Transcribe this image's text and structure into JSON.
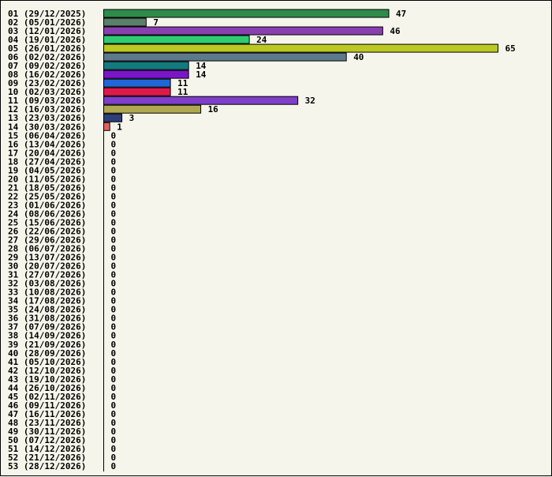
{
  "chart_data": {
    "type": "bar",
    "orientation": "horizontal",
    "title": "",
    "xlabel": "",
    "ylabel": "",
    "xlim": [
      0,
      65
    ],
    "grid": false,
    "legend": "none",
    "categories": [
      "01 (29/12/2025)",
      "02 (05/01/2026)",
      "03 (12/01/2026)",
      "04 (19/01/2026)",
      "05 (26/01/2026)",
      "06 (02/02/2026)",
      "07 (09/02/2026)",
      "08 (16/02/2026)",
      "09 (23/02/2026)",
      "10 (02/03/2026)",
      "11 (09/03/2026)",
      "12 (16/03/2026)",
      "13 (23/03/2026)",
      "14 (30/03/2026)",
      "15 (06/04/2026)",
      "16 (13/04/2026)",
      "17 (20/04/2026)",
      "18 (27/04/2026)",
      "19 (04/05/2026)",
      "20 (11/05/2026)",
      "21 (18/05/2026)",
      "22 (25/05/2026)",
      "23 (01/06/2026)",
      "24 (08/06/2026)",
      "25 (15/06/2026)",
      "26 (22/06/2026)",
      "27 (29/06/2026)",
      "28 (06/07/2026)",
      "29 (13/07/2026)",
      "30 (20/07/2026)",
      "31 (27/07/2026)",
      "32 (03/08/2026)",
      "33 (10/08/2026)",
      "34 (17/08/2026)",
      "35 (24/08/2026)",
      "36 (31/08/2026)",
      "37 (07/09/2026)",
      "38 (14/09/2026)",
      "39 (21/09/2026)",
      "40 (28/09/2026)",
      "41 (05/10/2026)",
      "42 (12/10/2026)",
      "43 (19/10/2026)",
      "44 (26/10/2026)",
      "45 (02/11/2026)",
      "46 (09/11/2026)",
      "47 (16/11/2026)",
      "48 (23/11/2026)",
      "49 (30/11/2026)",
      "50 (07/12/2026)",
      "51 (14/12/2026)",
      "52 (21/12/2026)",
      "53 (28/12/2026)"
    ],
    "values": [
      47,
      7,
      46,
      24,
      65,
      40,
      14,
      14,
      11,
      11,
      32,
      16,
      3,
      1,
      0,
      0,
      0,
      0,
      0,
      0,
      0,
      0,
      0,
      0,
      0,
      0,
      0,
      0,
      0,
      0,
      0,
      0,
      0,
      0,
      0,
      0,
      0,
      0,
      0,
      0,
      0,
      0,
      0,
      0,
      0,
      0,
      0,
      0,
      0,
      0,
      0,
      0,
      0
    ],
    "bar_colors": [
      "#2e8b4a",
      "#5a7f6a",
      "#8a3fb0",
      "#2ecc71",
      "#bcc823",
      "#5c7a8c",
      "#137a80",
      "#7a16c8",
      "#2166d8",
      "#e0194a",
      "#7f3fc8",
      "#b0a850",
      "#2e3f78",
      "#e06060"
    ]
  }
}
